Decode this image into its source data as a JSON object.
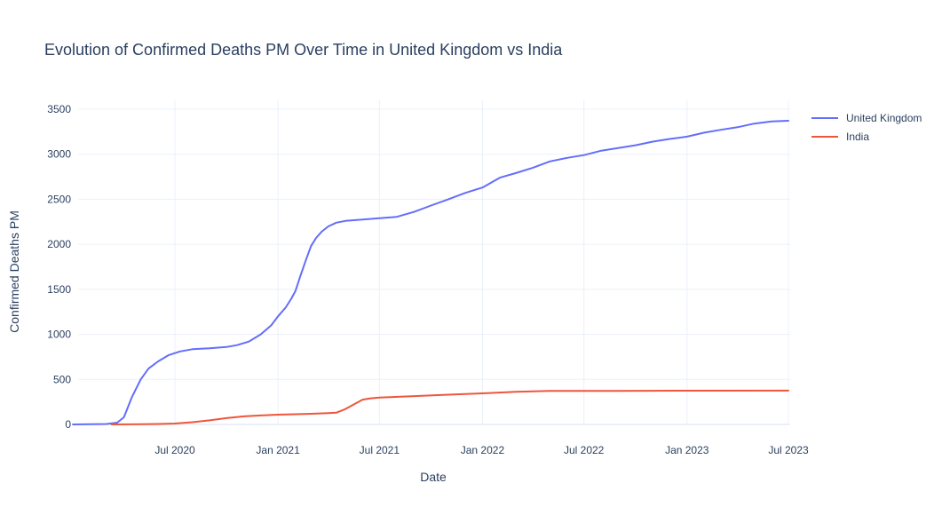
{
  "chart_data": {
    "type": "line",
    "title": "Evolution of Confirmed Deaths PM Over Time in United Kingdom vs India",
    "xlabel": "Date",
    "ylabel": "Confirmed Deaths PM",
    "xlim": [
      "2020-01-01",
      "2023-07-01"
    ],
    "ylim": [
      0,
      3500
    ],
    "x_ticks": [
      {
        "date": "2020-07-01",
        "label": "Jul 2020"
      },
      {
        "date": "2021-01-01",
        "label": "Jan 2021"
      },
      {
        "date": "2021-07-01",
        "label": "Jul 2021"
      },
      {
        "date": "2022-01-01",
        "label": "Jan 2022"
      },
      {
        "date": "2022-07-01",
        "label": "Jul 2022"
      },
      {
        "date": "2023-01-01",
        "label": "Jan 2023"
      },
      {
        "date": "2023-07-01",
        "label": "Jul 2023"
      }
    ],
    "y_ticks": [
      0,
      500,
      1000,
      1500,
      2000,
      2500,
      3000,
      3500
    ],
    "grid": true,
    "legend_position": "top-right",
    "series": [
      {
        "name": "United Kingdom",
        "color": "#636efa",
        "points": [
          [
            "2020-01-01",
            0
          ],
          [
            "2020-03-01",
            5
          ],
          [
            "2020-03-20",
            20
          ],
          [
            "2020-04-01",
            80
          ],
          [
            "2020-04-15",
            300
          ],
          [
            "2020-05-01",
            500
          ],
          [
            "2020-05-15",
            620
          ],
          [
            "2020-06-01",
            700
          ],
          [
            "2020-06-20",
            770
          ],
          [
            "2020-07-10",
            810
          ],
          [
            "2020-08-01",
            835
          ],
          [
            "2020-09-01",
            845
          ],
          [
            "2020-10-01",
            860
          ],
          [
            "2020-10-20",
            880
          ],
          [
            "2020-11-10",
            920
          ],
          [
            "2020-12-01",
            1000
          ],
          [
            "2020-12-20",
            1100
          ],
          [
            "2021-01-01",
            1200
          ],
          [
            "2021-01-15",
            1300
          ],
          [
            "2021-01-25",
            1400
          ],
          [
            "2021-02-01",
            1480
          ],
          [
            "2021-02-10",
            1650
          ],
          [
            "2021-02-20",
            1830
          ],
          [
            "2021-03-01",
            1980
          ],
          [
            "2021-03-10",
            2070
          ],
          [
            "2021-03-20",
            2140
          ],
          [
            "2021-04-01",
            2200
          ],
          [
            "2021-04-15",
            2240
          ],
          [
            "2021-05-01",
            2260
          ],
          [
            "2021-06-01",
            2275
          ],
          [
            "2021-07-01",
            2290
          ],
          [
            "2021-08-01",
            2305
          ],
          [
            "2021-09-01",
            2360
          ],
          [
            "2021-10-01",
            2430
          ],
          [
            "2021-11-01",
            2500
          ],
          [
            "2021-12-01",
            2570
          ],
          [
            "2022-01-01",
            2630
          ],
          [
            "2022-02-01",
            2740
          ],
          [
            "2022-03-01",
            2790
          ],
          [
            "2022-04-01",
            2850
          ],
          [
            "2022-05-01",
            2920
          ],
          [
            "2022-06-01",
            2960
          ],
          [
            "2022-07-01",
            2990
          ],
          [
            "2022-08-01",
            3040
          ],
          [
            "2022-09-01",
            3070
          ],
          [
            "2022-10-01",
            3100
          ],
          [
            "2022-11-01",
            3140
          ],
          [
            "2022-12-01",
            3170
          ],
          [
            "2023-01-01",
            3195
          ],
          [
            "2023-02-01",
            3240
          ],
          [
            "2023-03-01",
            3270
          ],
          [
            "2023-04-01",
            3300
          ],
          [
            "2023-05-01",
            3340
          ],
          [
            "2023-06-01",
            3365
          ],
          [
            "2023-07-01",
            3372
          ]
        ]
      },
      {
        "name": "India",
        "color": "#ef553b",
        "points": [
          [
            "2020-03-10",
            0
          ],
          [
            "2020-05-01",
            2
          ],
          [
            "2020-06-01",
            5
          ],
          [
            "2020-07-01",
            10
          ],
          [
            "2020-08-01",
            25
          ],
          [
            "2020-09-01",
            45
          ],
          [
            "2020-10-01",
            70
          ],
          [
            "2020-11-01",
            90
          ],
          [
            "2020-12-01",
            100
          ],
          [
            "2021-01-01",
            108
          ],
          [
            "2021-02-01",
            113
          ],
          [
            "2021-03-01",
            118
          ],
          [
            "2021-04-01",
            125
          ],
          [
            "2021-04-15",
            130
          ],
          [
            "2021-05-01",
            170
          ],
          [
            "2021-06-01",
            275
          ],
          [
            "2021-06-15",
            290
          ],
          [
            "2021-07-01",
            298
          ],
          [
            "2021-09-01",
            315
          ],
          [
            "2021-11-01",
            330
          ],
          [
            "2022-01-01",
            345
          ],
          [
            "2022-03-01",
            362
          ],
          [
            "2022-05-01",
            372
          ],
          [
            "2022-09-01",
            373
          ],
          [
            "2023-01-01",
            375
          ],
          [
            "2023-07-01",
            376
          ]
        ]
      }
    ]
  }
}
